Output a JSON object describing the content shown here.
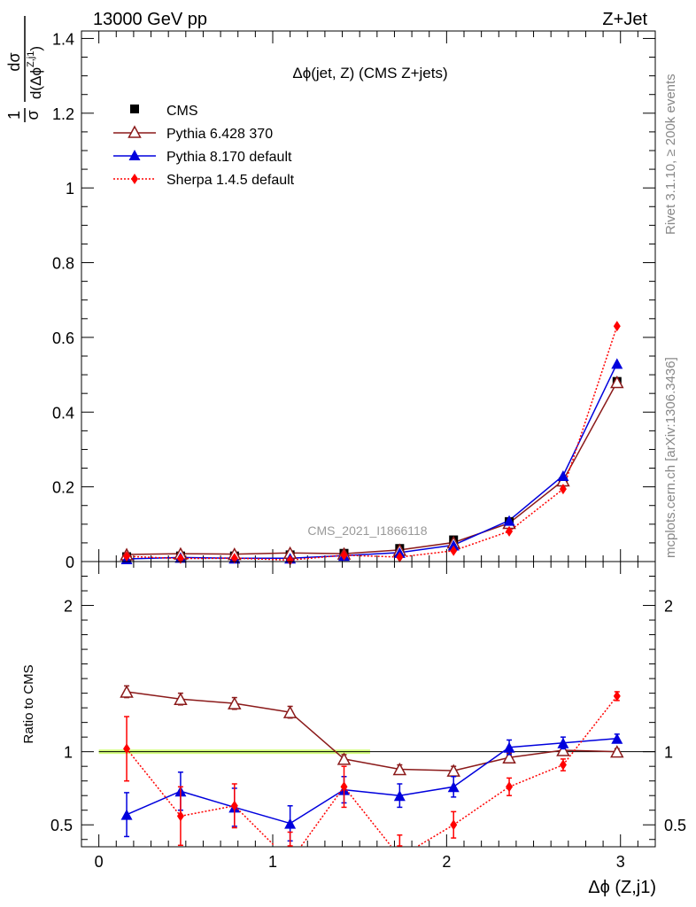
{
  "header": {
    "left": "13000 GeV pp",
    "right": "Z+Jet"
  },
  "side_text": {
    "rivet": "Rivet 3.1.10, ≥ 200k events",
    "mcplots": "mcplots.cern.ch [arXiv:1306.3436]"
  },
  "colors": {
    "cms": "#000000",
    "pythia6": "#8b1a1a",
    "pythia8": "#0000dd",
    "sherpa": "#ff0000",
    "band": "#ccff66"
  },
  "chart_data": [
    {
      "type": "line",
      "title": "Δϕ(jet, Z) (CMS Z+jets)",
      "ylabel_num": "dσ",
      "ylabel_den": "d(Δϕ",
      "ylabel_sup": "Z,j1",
      "ylabel_pre": "1",
      "ylabel_sigma": "σ",
      "analysis": "CMS_2021_I1866118",
      "xlim": [
        -0.1,
        3.2
      ],
      "ylim": [
        0,
        1.42
      ],
      "yticks": [
        "0",
        "0.2",
        "0.4",
        "0.6",
        "0.8",
        "1",
        "1.2",
        "1.4"
      ],
      "legend_position": "top-left",
      "x": [
        0.16,
        0.47,
        0.78,
        1.1,
        1.41,
        1.73,
        2.04,
        2.36,
        2.67,
        2.98
      ],
      "series": [
        {
          "name": "CMS",
          "values": [
            0.013,
            0.015,
            0.015,
            0.018,
            0.022,
            0.035,
            0.058,
            0.107,
            0.213,
            0.482
          ]
        },
        {
          "name": "Pythia 6.428 370",
          "values": [
            0.019,
            0.021,
            0.02,
            0.023,
            0.021,
            0.031,
            0.051,
            0.103,
            0.217,
            0.48
          ]
        },
        {
          "name": "Pythia 8.170 default",
          "values": [
            0.007,
            0.011,
            0.009,
            0.009,
            0.016,
            0.024,
            0.044,
            0.11,
            0.23,
            0.53
          ]
        },
        {
          "name": "Sherpa 1.4.5 default",
          "values": [
            0.014,
            0.008,
            0.009,
            0.004,
            0.017,
            0.012,
            0.029,
            0.081,
            0.194,
            0.63
          ]
        }
      ]
    },
    {
      "type": "line",
      "ylabel": "Ratio to CMS",
      "xlabel": "Δϕ (Z,j1)",
      "xlim": [
        -0.1,
        3.2
      ],
      "ylim": [
        0.35,
        2.3
      ],
      "yticks": [
        "0.5",
        "1",
        "2"
      ],
      "xticks": [
        "0",
        "1",
        "2",
        "3"
      ],
      "x": [
        0.16,
        0.47,
        0.78,
        1.1,
        1.41,
        1.73,
        2.04,
        2.36,
        2.67,
        2.98
      ],
      "series": [
        {
          "name": "Pythia 6.428 370",
          "values": [
            1.41,
            1.36,
            1.33,
            1.27,
            0.95,
            0.88,
            0.87,
            0.96,
            1.01,
            1.0
          ],
          "errors": [
            0.04,
            0.04,
            0.04,
            0.04,
            0.03,
            0.03,
            0.03,
            0.03,
            0.03,
            0.02
          ]
        },
        {
          "name": "Pythia 8.170 default",
          "values": [
            0.57,
            0.73,
            0.62,
            0.51,
            0.74,
            0.7,
            0.76,
            1.03,
            1.06,
            1.09
          ],
          "errors": [
            0.15,
            0.13,
            0.13,
            0.12,
            0.09,
            0.08,
            0.07,
            0.05,
            0.04,
            0.03
          ]
        },
        {
          "name": "Sherpa 1.4.5 default",
          "values": [
            1.02,
            0.56,
            0.63,
            0.25,
            0.76,
            0.28,
            0.5,
            0.76,
            0.91,
            1.38
          ],
          "errors": [
            0.22,
            0.2,
            0.15,
            0.2,
            0.14,
            0.15,
            0.09,
            0.06,
            0.04,
            0.03
          ]
        }
      ]
    }
  ]
}
